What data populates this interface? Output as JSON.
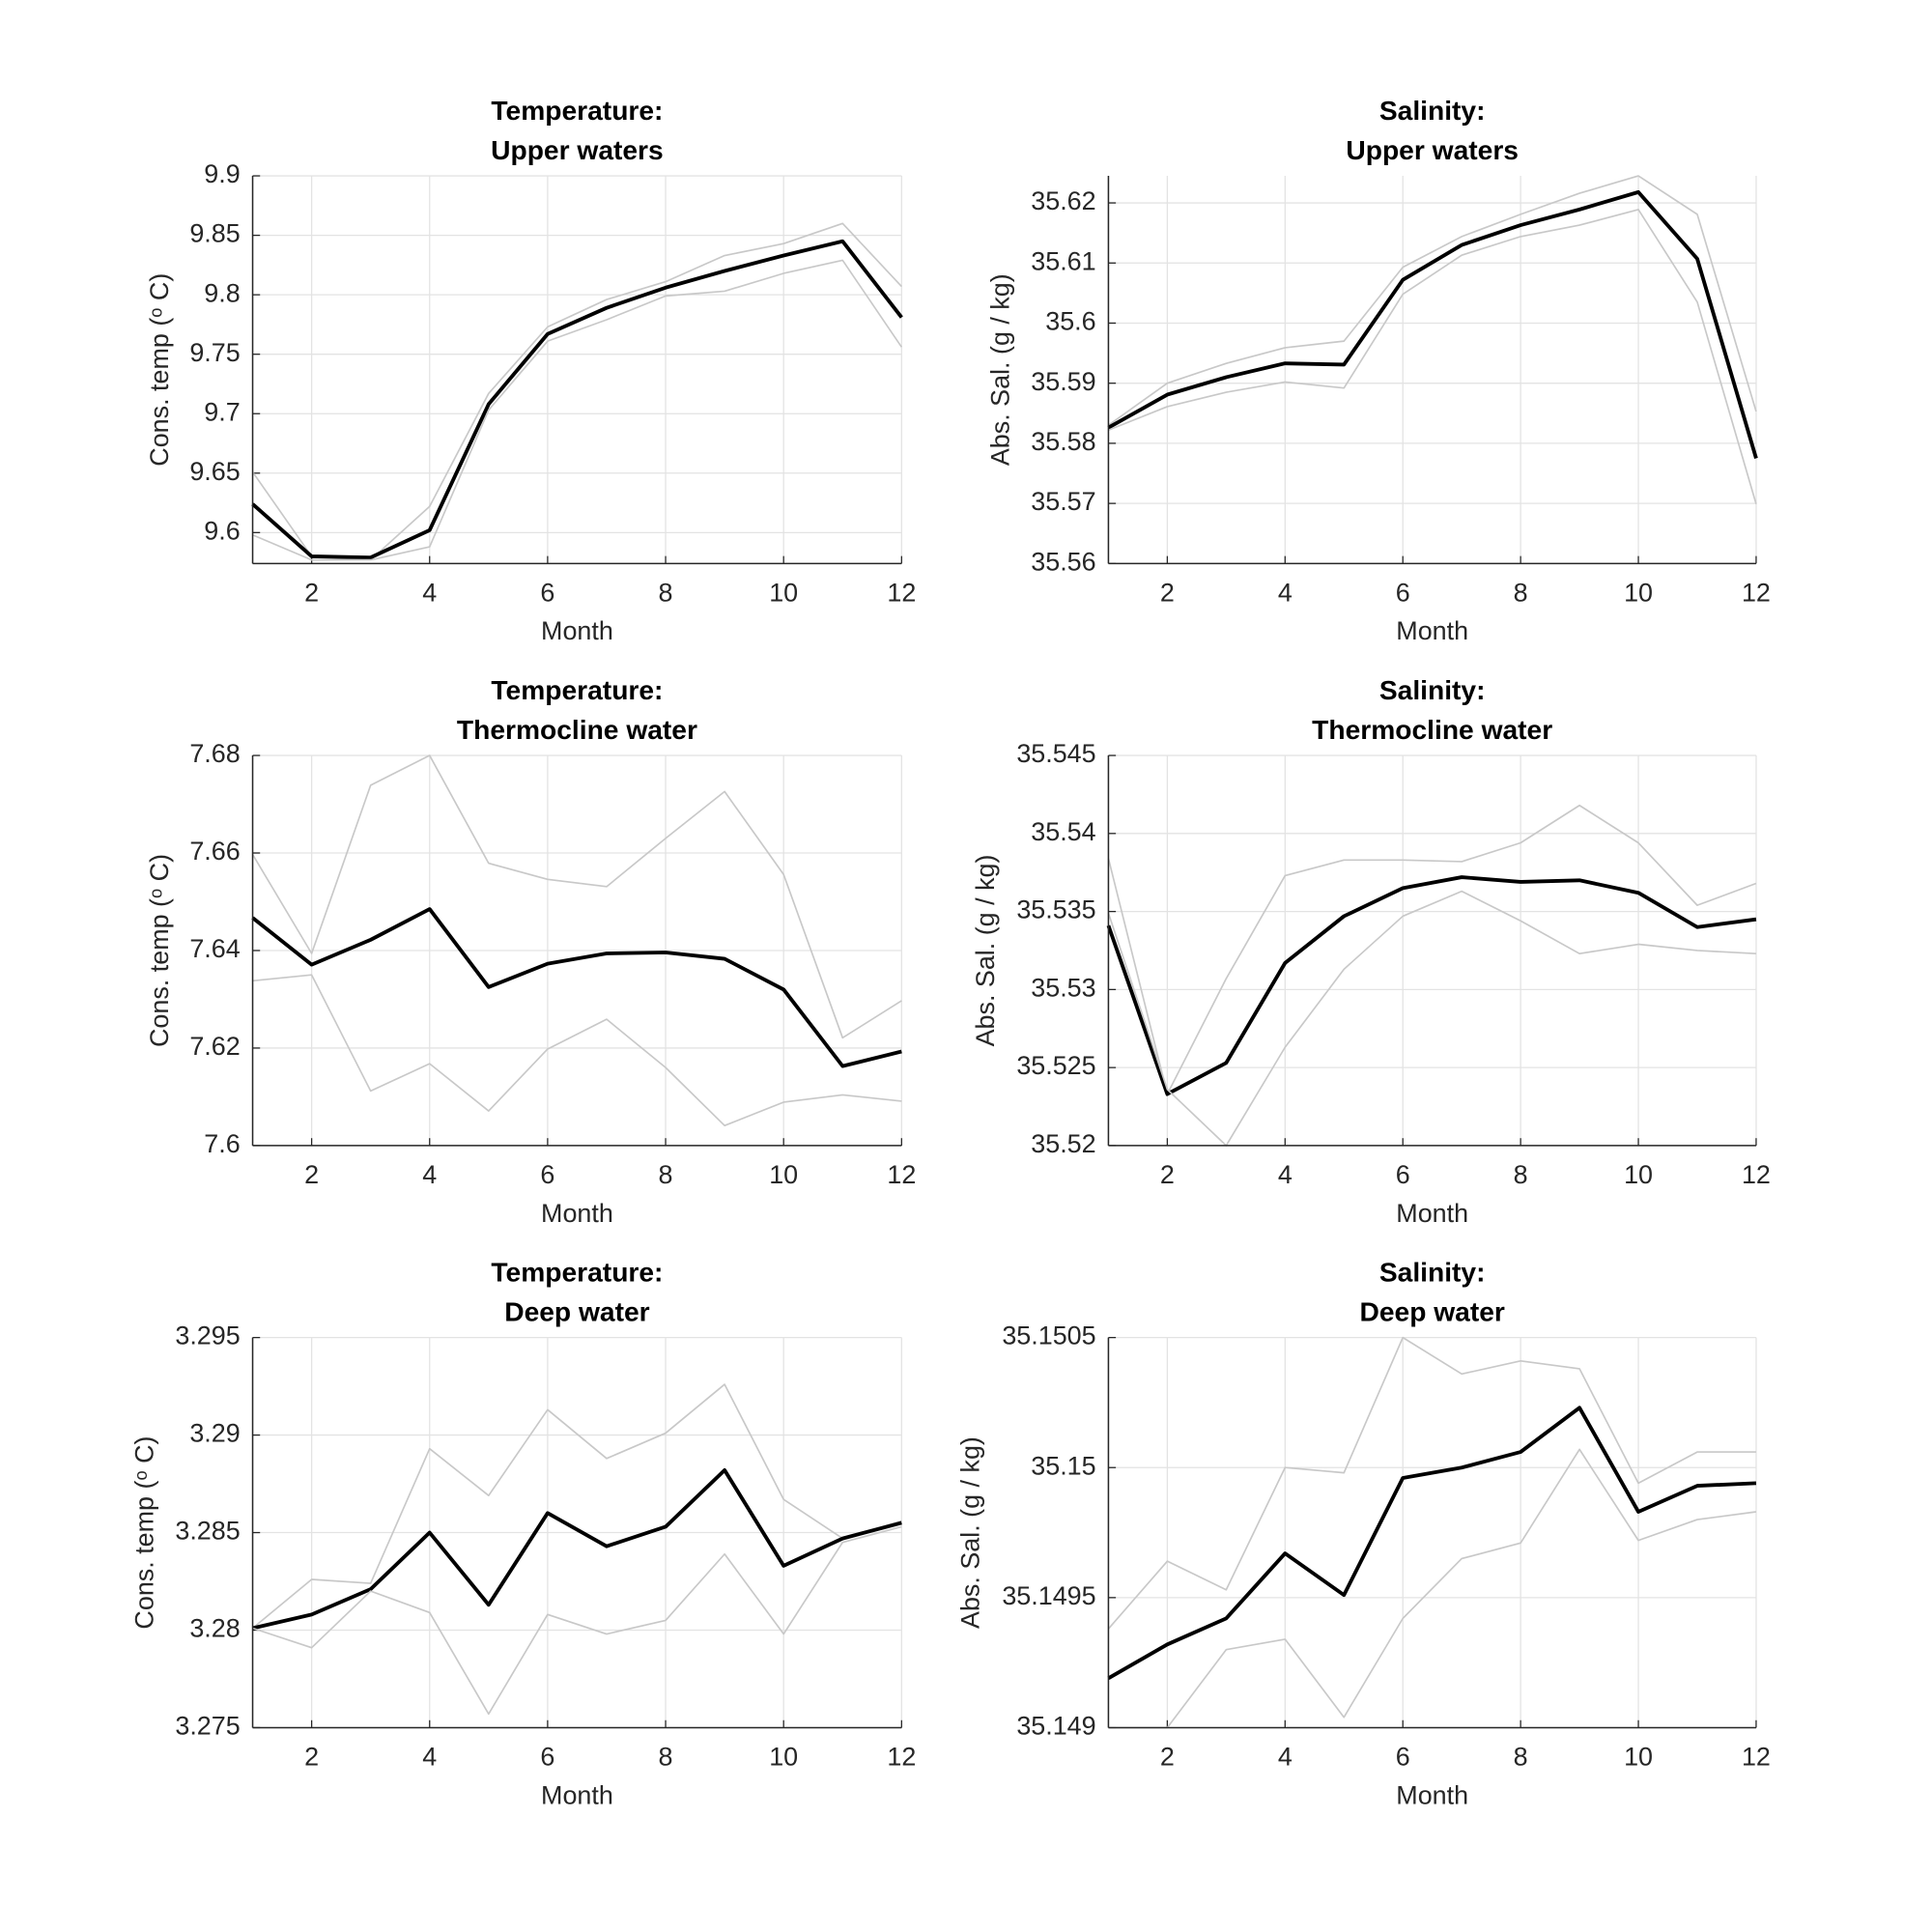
{
  "chart_data": [
    {
      "type": "line",
      "title": [
        "Temperature:",
        "Upper waters"
      ],
      "xlabel": "Month",
      "ylabel": "Cons. temp (ᵒ C)",
      "x": [
        1,
        2,
        3,
        4,
        5,
        6,
        7,
        8,
        9,
        10,
        11,
        12
      ],
      "xlim": [
        1,
        12
      ],
      "xticks": [
        2,
        4,
        6,
        8,
        10,
        12
      ],
      "ylim": [
        9.574,
        9.9
      ],
      "yticks": [
        9.6,
        9.65,
        9.7,
        9.75,
        9.8,
        9.85,
        9.9
      ],
      "grid": true,
      "series": [
        {
          "color": "#c8c8c8",
          "values": [
            9.651,
            9.58,
            9.577,
            9.622,
            9.717,
            9.773,
            9.796,
            9.811,
            9.833,
            9.843,
            9.86,
            9.807
          ]
        },
        {
          "color": "#000000",
          "values": [
            9.624,
            9.58,
            9.579,
            9.602,
            9.708,
            9.767,
            9.789,
            9.806,
            9.82,
            9.833,
            9.845,
            9.781
          ]
        },
        {
          "color": "#c8c8c8",
          "values": [
            9.598,
            9.577,
            9.577,
            9.588,
            9.703,
            9.761,
            9.779,
            9.799,
            9.803,
            9.818,
            9.829,
            9.756
          ]
        }
      ]
    },
    {
      "type": "line",
      "title": [
        "Salinity:",
        "Upper waters"
      ],
      "xlabel": "Month",
      "ylabel": "Abs. Sal. (g / kg)",
      "x": [
        1,
        2,
        3,
        4,
        5,
        6,
        7,
        8,
        9,
        10,
        11,
        12
      ],
      "xlim": [
        1,
        12
      ],
      "xticks": [
        2,
        4,
        6,
        8,
        10,
        12
      ],
      "ylim": [
        35.56,
        35.6245
      ],
      "yticks": [
        35.56,
        35.57,
        35.58,
        35.59,
        35.6,
        35.61,
        35.62
      ],
      "grid": true,
      "series": [
        {
          "color": "#c8c8c8",
          "values": [
            35.583,
            35.59,
            35.5933,
            35.5959,
            35.597,
            35.6093,
            35.6144,
            35.6181,
            35.6216,
            35.6245,
            35.6181,
            35.5853
          ]
        },
        {
          "color": "#000000",
          "values": [
            35.5826,
            35.5881,
            35.591,
            35.5933,
            35.5931,
            35.6072,
            35.613,
            35.6163,
            35.6189,
            35.6218,
            35.6107,
            35.5775
          ]
        },
        {
          "color": "#c8c8c8",
          "values": [
            35.5822,
            35.5861,
            35.5885,
            35.5902,
            35.5892,
            35.6048,
            35.6113,
            35.6144,
            35.6163,
            35.6189,
            35.6035,
            35.5699
          ]
        }
      ]
    },
    {
      "type": "line",
      "title": [
        "Temperature:",
        "Thermocline water"
      ],
      "xlabel": "Month",
      "ylabel": "Cons. temp (ᵒ C)",
      "x": [
        1,
        2,
        3,
        4,
        5,
        6,
        7,
        8,
        9,
        10,
        11,
        12
      ],
      "xlim": [
        1,
        12
      ],
      "xticks": [
        2,
        4,
        6,
        8,
        10,
        12
      ],
      "ylim": [
        7.6,
        7.68
      ],
      "yticks": [
        7.6,
        7.62,
        7.64,
        7.66,
        7.68
      ],
      "grid": true,
      "series": [
        {
          "color": "#c8c8c8",
          "values": [
            7.6597,
            7.6394,
            7.6739,
            7.68,
            7.6579,
            7.6546,
            7.6531,
            7.663,
            7.6726,
            7.6556,
            7.6221,
            7.6297
          ]
        },
        {
          "color": "#000000",
          "values": [
            7.6467,
            7.6371,
            7.6422,
            7.6485,
            7.6325,
            7.6373,
            7.6394,
            7.6396,
            7.6383,
            7.632,
            7.6163,
            7.6193
          ]
        },
        {
          "color": "#c8c8c8",
          "values": [
            7.6338,
            7.635,
            7.6112,
            7.6168,
            7.6071,
            7.6198,
            7.6259,
            7.616,
            7.6041,
            7.6089,
            7.6104,
            7.6091
          ]
        }
      ]
    },
    {
      "type": "line",
      "title": [
        "Salinity:",
        "Thermocline water"
      ],
      "xlabel": "Month",
      "ylabel": "Abs. Sal. (g / kg)",
      "x": [
        1,
        2,
        3,
        4,
        5,
        6,
        7,
        8,
        9,
        10,
        11,
        12
      ],
      "xlim": [
        1,
        12
      ],
      "xticks": [
        2,
        4,
        6,
        8,
        10,
        12
      ],
      "ylim": [
        35.52,
        35.545
      ],
      "yticks": [
        35.52,
        35.525,
        35.53,
        35.535,
        35.54,
        35.545
      ],
      "grid": true,
      "series": [
        {
          "color": "#c8c8c8",
          "values": [
            35.5384,
            35.5233,
            35.5307,
            35.5373,
            35.5383,
            35.5383,
            35.5382,
            35.5394,
            35.5418,
            35.5394,
            35.5354,
            35.5368
          ]
        },
        {
          "color": "#000000",
          "values": [
            35.5341,
            35.5233,
            35.5253,
            35.5317,
            35.5347,
            35.5365,
            35.5372,
            35.5369,
            35.537,
            35.5362,
            35.534,
            35.5345
          ]
        },
        {
          "color": "#c8c8c8",
          "values": [
            35.5349,
            35.5236,
            35.52,
            35.5263,
            35.5313,
            35.5347,
            35.5363,
            35.5344,
            35.5323,
            35.5329,
            35.5325,
            35.5323
          ]
        }
      ]
    },
    {
      "type": "line",
      "title": [
        "Temperature:",
        "Deep water"
      ],
      "xlabel": "Month",
      "ylabel": "Cons. temp (ᵒ C)",
      "x": [
        1,
        2,
        3,
        4,
        5,
        6,
        7,
        8,
        9,
        10,
        11,
        12
      ],
      "xlim": [
        1,
        12
      ],
      "xticks": [
        2,
        4,
        6,
        8,
        10,
        12
      ],
      "ylim": [
        3.275,
        3.295
      ],
      "yticks": [
        3.275,
        3.28,
        3.285,
        3.29,
        3.295
      ],
      "grid": true,
      "series": [
        {
          "color": "#c8c8c8",
          "values": [
            3.2801,
            3.2826,
            3.2824,
            3.2893,
            3.2869,
            3.2913,
            3.2888,
            3.2901,
            3.2926,
            3.2867,
            3.2847,
            3.2856
          ]
        },
        {
          "color": "#000000",
          "values": [
            3.2801,
            3.2808,
            3.2821,
            3.285,
            3.2813,
            3.286,
            3.2843,
            3.2853,
            3.2882,
            3.2833,
            3.2847,
            3.2855
          ]
        },
        {
          "color": "#c8c8c8",
          "values": [
            3.2801,
            3.2791,
            3.282,
            3.2809,
            3.2757,
            3.2808,
            3.2798,
            3.2805,
            3.2839,
            3.2798,
            3.2845,
            3.2853
          ]
        }
      ]
    },
    {
      "type": "line",
      "title": [
        "Salinity:",
        "Deep water"
      ],
      "xlabel": "Month",
      "ylabel": "Abs. Sal. (g / kg)",
      "x": [
        1,
        2,
        3,
        4,
        5,
        6,
        7,
        8,
        9,
        10,
        11,
        12
      ],
      "xlim": [
        1,
        12
      ],
      "xticks": [
        2,
        4,
        6,
        8,
        10,
        12
      ],
      "ylim": [
        35.149,
        35.1505
      ],
      "yticks": [
        35.149,
        35.1495,
        35.15,
        35.1505
      ],
      "grid": true,
      "series": [
        {
          "color": "#c8c8c8",
          "values": [
            35.14938,
            35.14964,
            35.14953,
            35.15,
            35.14998,
            35.1505,
            35.15036,
            35.15041,
            35.15038,
            35.14994,
            35.15006,
            35.15006
          ]
        },
        {
          "color": "#000000",
          "values": [
            35.14919,
            35.14932,
            35.14942,
            35.14967,
            35.14951,
            35.14996,
            35.15,
            35.15006,
            35.15023,
            35.14983,
            35.14993,
            35.14994
          ]
        },
        {
          "color": "#c8c8c8",
          "values": [
            35.149,
            35.149,
            35.1493,
            35.14934,
            35.14904,
            35.14942,
            35.14965,
            35.14971,
            35.15007,
            35.14972,
            35.1498,
            35.14983
          ]
        }
      ]
    }
  ]
}
